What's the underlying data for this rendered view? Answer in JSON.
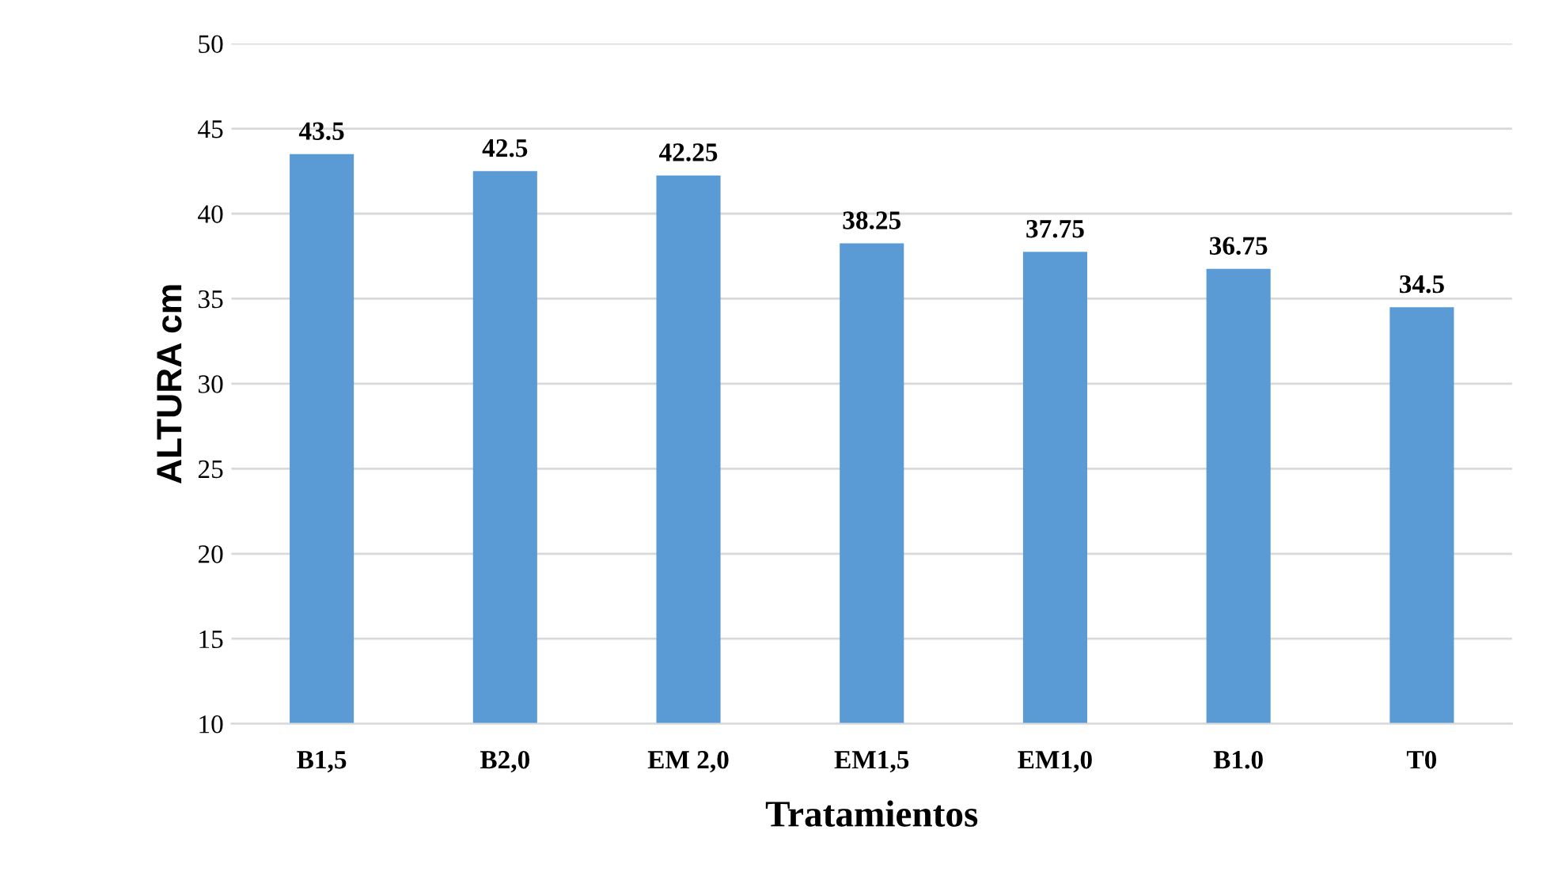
{
  "chart_data": {
    "type": "bar",
    "xlabel": "Tratamientos",
    "ylabel": "ALTURA cm",
    "categories": [
      "B1,5",
      "B2,0",
      "EM 2,0",
      "EM1,5",
      "EM1,0",
      "B1.0",
      "T0"
    ],
    "values": [
      43.5,
      42.5,
      42.25,
      38.25,
      37.75,
      36.75,
      34.5
    ],
    "color": "#5b9bd5",
    "ylim": [
      10,
      50
    ],
    "yticks": [
      10,
      15,
      20,
      25,
      30,
      35,
      40,
      45,
      50
    ],
    "grid": "y",
    "data_labels": true
  }
}
